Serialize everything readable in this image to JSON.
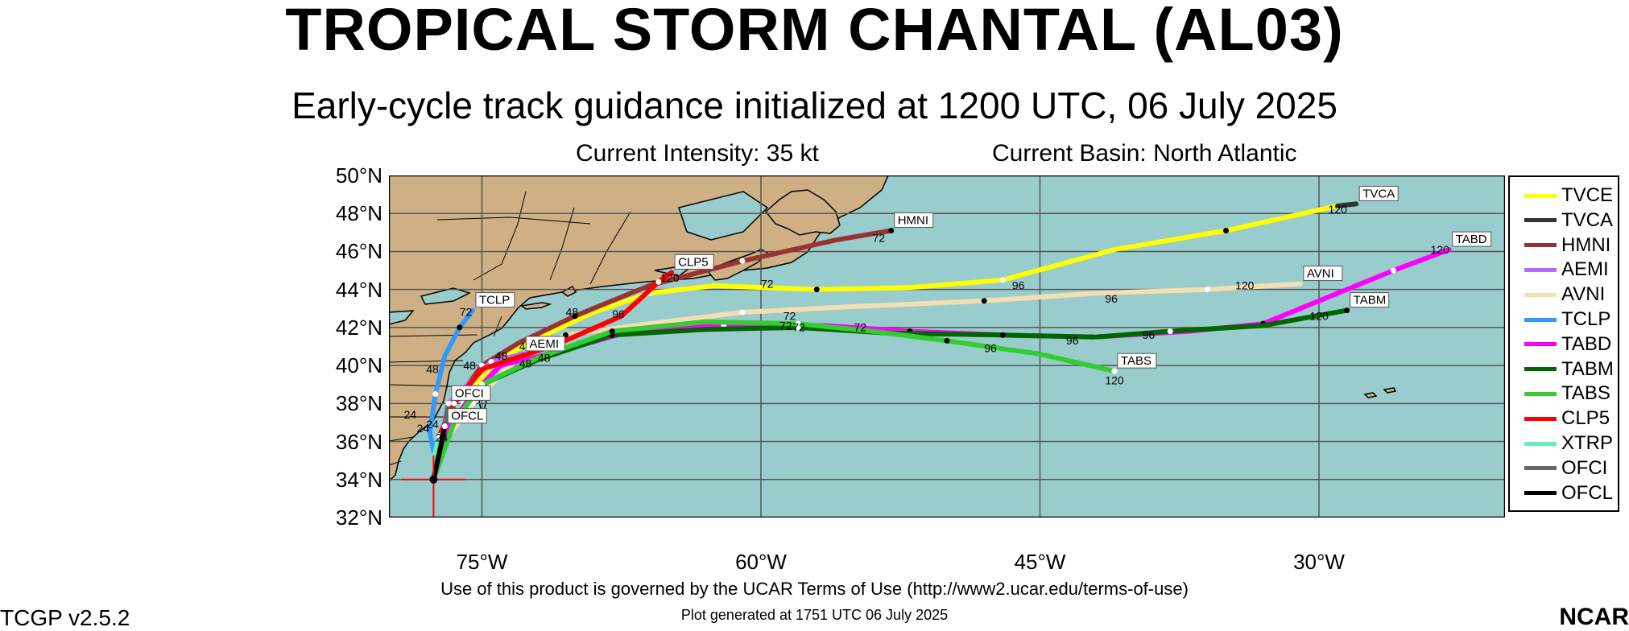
{
  "header": {
    "title": "TROPICAL STORM CHANTAL (AL03)",
    "subtitle": "Early-cycle track guidance initialized at 1200 UTC, 06 July 2025",
    "intensity": "Current Intensity: 35 kt",
    "basin": "Current Basin: North Atlantic"
  },
  "footer": {
    "terms": "Use of this product is governed by the UCAR Terms of Use (http://www2.ucar.edu/terms-of-use)",
    "generated": "Plot generated at 1751 UTC   06 July 2025",
    "version": "TCGP v2.5.2",
    "logo": "NCAR"
  },
  "map": {
    "lon_range": [
      -80,
      -20
    ],
    "lat_range": [
      32,
      50
    ],
    "grid_lons": [
      -75,
      -60,
      -45,
      -30
    ],
    "grid_lats": [
      32,
      34,
      36,
      38,
      40,
      42,
      44,
      46,
      48,
      50
    ],
    "lat_labels": [
      "32°N",
      "34°N",
      "36°N",
      "38°N",
      "40°N",
      "42°N",
      "44°N",
      "46°N",
      "48°N",
      "50°N"
    ],
    "lon_labels": [
      "75°W",
      "60°W",
      "45°W",
      "30°W"
    ],
    "colors": {
      "ocean": "#99cccc",
      "land": "#cfb085",
      "grid": "#555555",
      "coast": "#000000"
    },
    "storm_position": {
      "lon": -77.6,
      "lat": 34.0
    }
  },
  "legend": [
    {
      "name": "TVCE",
      "color": "#ffff00"
    },
    {
      "name": "TVCA",
      "color": "#333333"
    },
    {
      "name": "HMNI",
      "color": "#993333"
    },
    {
      "name": "AEMI",
      "color": "#b36bff"
    },
    {
      "name": "AVNI",
      "color": "#f5deb3"
    },
    {
      "name": "TCLP",
      "color": "#3399ff"
    },
    {
      "name": "TABD",
      "color": "#ff00ff"
    },
    {
      "name": "TABM",
      "color": "#006600"
    },
    {
      "name": "TABS",
      "color": "#33cc33"
    },
    {
      "name": "CLP5",
      "color": "#ff0000"
    },
    {
      "name": "XTRP",
      "color": "#66eebb"
    },
    {
      "name": "OFCI",
      "color": "#666666"
    },
    {
      "name": "OFCL",
      "color": "#000000"
    }
  ],
  "tracks": [
    {
      "name": "TVCE",
      "color": "#ffff00",
      "points": [
        [
          -77.6,
          34
        ],
        [
          -77.2,
          35.5
        ],
        [
          -76,
          38
        ],
        [
          -74.5,
          40
        ],
        [
          -72.5,
          41.2
        ],
        [
          -69,
          42.8
        ],
        [
          -66,
          43.8
        ],
        [
          -62.5,
          44.2
        ],
        [
          -57,
          44
        ],
        [
          -52,
          44.1
        ],
        [
          -47,
          44.5
        ],
        [
          -41,
          46.1
        ],
        [
          -35,
          47.1
        ],
        [
          -29,
          48.4
        ]
      ],
      "end_label": ""
    },
    {
      "name": "TVCA",
      "color": "#333333",
      "points": [
        [
          -29,
          48.4
        ],
        [
          -28,
          48.5
        ]
      ],
      "end_label": "TVCA"
    },
    {
      "name": "HMNI",
      "color": "#993333",
      "points": [
        [
          -77.6,
          34
        ],
        [
          -76.5,
          38
        ],
        [
          -75,
          40
        ],
        [
          -73,
          41.2
        ],
        [
          -70,
          42.6
        ],
        [
          -66,
          44.2
        ],
        [
          -61,
          45.5
        ],
        [
          -56,
          46.6
        ],
        [
          -53,
          47.1
        ]
      ],
      "end_label": "HMNI"
    },
    {
      "name": "AEMI",
      "color": "#b36bff",
      "points": [
        [
          -77.6,
          34
        ],
        [
          -76.8,
          38
        ],
        [
          -74.5,
          40.2
        ],
        [
          -72.8,
          40.6
        ]
      ],
      "end_label": "AEMI"
    },
    {
      "name": "AVNI",
      "color": "#f5deb3",
      "points": [
        [
          -77.6,
          34
        ],
        [
          -77,
          36
        ],
        [
          -75.5,
          38
        ],
        [
          -73.5,
          40
        ],
        [
          -70.5,
          41.6
        ],
        [
          -66,
          42.2
        ],
        [
          -61,
          42.8
        ],
        [
          -55,
          43.1
        ],
        [
          -48,
          43.4
        ],
        [
          -42,
          43.8
        ],
        [
          -36,
          44
        ],
        [
          -31,
          44.3
        ]
      ],
      "end_label": "AVNI"
    },
    {
      "name": "TCLP",
      "color": "#3399ff",
      "points": [
        [
          -77.6,
          35.5
        ],
        [
          -77.8,
          36.5
        ],
        [
          -77.5,
          38.5
        ],
        [
          -77,
          40.5
        ],
        [
          -76.2,
          42
        ],
        [
          -75.5,
          42.9
        ]
      ],
      "end_label": "TCLP"
    },
    {
      "name": "TABD",
      "color": "#ff00ff",
      "points": [
        [
          -77.6,
          34
        ],
        [
          -77,
          36.5
        ],
        [
          -75.5,
          38.5
        ],
        [
          -74,
          40
        ],
        [
          -71,
          40.7
        ],
        [
          -67,
          41.8
        ],
        [
          -62,
          42.1
        ],
        [
          -56.5,
          42.1
        ],
        [
          -52,
          41.8
        ],
        [
          -47,
          41.6
        ],
        [
          -42,
          41.5
        ],
        [
          -37,
          41.8
        ],
        [
          -33,
          42.2
        ],
        [
          -30,
          43.4
        ],
        [
          -26,
          45
        ],
        [
          -23,
          46.1
        ]
      ],
      "end_label": "TABD"
    },
    {
      "name": "TABM",
      "color": "#006600",
      "points": [
        [
          -77.6,
          34
        ],
        [
          -76.5,
          37
        ],
        [
          -75,
          39
        ],
        [
          -72,
          40.3
        ],
        [
          -68,
          41.6
        ],
        [
          -63,
          41.9
        ],
        [
          -58,
          42
        ],
        [
          -53,
          41.7
        ],
        [
          -47,
          41.6
        ],
        [
          -42,
          41.5
        ],
        [
          -38,
          41.8
        ],
        [
          -33,
          42.1
        ],
        [
          -28.5,
          42.9
        ]
      ],
      "end_label": "TABM"
    },
    {
      "name": "TABS",
      "color": "#33cc33",
      "points": [
        [
          -77.6,
          34
        ],
        [
          -76.5,
          37
        ],
        [
          -75,
          39
        ],
        [
          -72,
          40.4
        ],
        [
          -68,
          41.8
        ],
        [
          -63,
          42.3
        ],
        [
          -58,
          42.2
        ],
        [
          -54,
          41.8
        ],
        [
          -50,
          41.3
        ],
        [
          -45,
          40.6
        ],
        [
          -41,
          39.7
        ]
      ],
      "end_label": "TABS"
    },
    {
      "name": "CLP5",
      "color": "#ff0000",
      "points": [
        [
          -77.6,
          34
        ],
        [
          -77.3,
          36.3
        ],
        [
          -76.5,
          38
        ],
        [
          -75,
          39.8
        ],
        [
          -71,
          41.1
        ],
        [
          -67.5,
          42.6
        ],
        [
          -65.5,
          44.4
        ],
        [
          -64.8,
          44.9
        ]
      ],
      "end_label": "CLP5"
    },
    {
      "name": "XTRP",
      "color": "#66eebb",
      "points": [
        [
          -77.6,
          34
        ],
        [
          -77.5,
          35.5
        ],
        [
          -77.3,
          36.3
        ]
      ],
      "end_label": ""
    },
    {
      "name": "OFCI",
      "color": "#666666",
      "points": [
        [
          -77.6,
          34
        ],
        [
          -77,
          36.8
        ],
        [
          -76.8,
          38
        ]
      ],
      "end_label": "OFCI"
    },
    {
      "name": "OFCL",
      "color": "#000000",
      "points": [
        [
          -77.6,
          34
        ],
        [
          -77.2,
          35.8
        ],
        [
          -77,
          36.8
        ]
      ],
      "end_label": "OFCL"
    }
  ],
  "hour_labels": [
    {
      "text": "72",
      "lon": -76.2,
      "lat": 42.6
    },
    {
      "text": "48",
      "lon": -78,
      "lat": 39.6
    },
    {
      "text": "24",
      "lon": -79.2,
      "lat": 37.2
    },
    {
      "text": "24",
      "lon": -78.5,
      "lat": 36.5
    },
    {
      "text": "24",
      "lon": -77.5,
      "lat": 36
    },
    {
      "text": "24",
      "lon": -78,
      "lat": 36.7
    },
    {
      "text": "48",
      "lon": -76,
      "lat": 39.8
    },
    {
      "text": "48",
      "lon": -73,
      "lat": 40.8
    },
    {
      "text": "48",
      "lon": -74.3,
      "lat": 40.3
    },
    {
      "text": "48",
      "lon": -72,
      "lat": 40.2
    },
    {
      "text": "48",
      "lon": -73,
      "lat": 39.9
    },
    {
      "text": "48",
      "lon": -70.5,
      "lat": 42.6
    },
    {
      "text": "96",
      "lon": -68,
      "lat": 42.5
    },
    {
      "text": "120",
      "lon": -65.4,
      "lat": 44.4
    },
    {
      "text": "72",
      "lon": -54,
      "lat": 46.5
    },
    {
      "text": "72",
      "lon": -60,
      "lat": 44.1
    },
    {
      "text": "72",
      "lon": -58.8,
      "lat": 42.4
    },
    {
      "text": "72",
      "lon": -59,
      "lat": 41.9
    },
    {
      "text": "72",
      "lon": -58.3,
      "lat": 41.8
    },
    {
      "text": "72",
      "lon": -55,
      "lat": 41.8
    },
    {
      "text": "96",
      "lon": -46.5,
      "lat": 44
    },
    {
      "text": "96",
      "lon": -41.5,
      "lat": 43.3
    },
    {
      "text": "96",
      "lon": -48,
      "lat": 40.7
    },
    {
      "text": "96",
      "lon": -43.6,
      "lat": 41.1
    },
    {
      "text": "96",
      "lon": -39.5,
      "lat": 41.4
    },
    {
      "text": "120",
      "lon": -34.5,
      "lat": 44
    },
    {
      "text": "120",
      "lon": -30.5,
      "lat": 42.4
    },
    {
      "text": "120",
      "lon": -41.5,
      "lat": 39
    },
    {
      "text": "120",
      "lon": -29.5,
      "lat": 48
    },
    {
      "text": "120",
      "lon": -24,
      "lat": 45.9
    }
  ]
}
